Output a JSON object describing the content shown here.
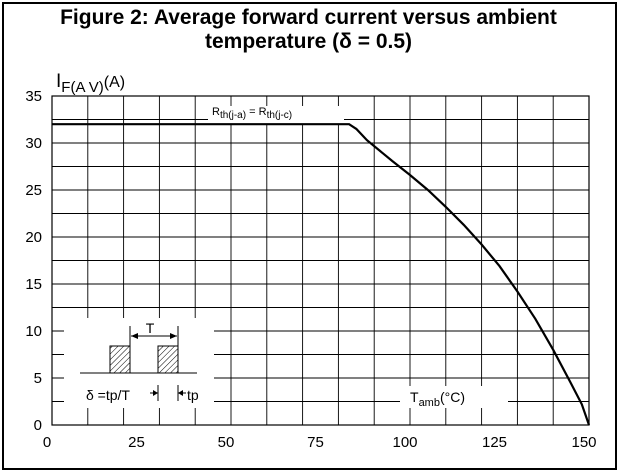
{
  "chart_data": {
    "type": "line",
    "title_line1": "Figure 2: Average forward current versus ambient",
    "title_line2": "temperature (δ = 0.5)",
    "ylabel": {
      "main": "I",
      "sub": "F(A V)",
      "unit": "(A)"
    },
    "xlabel": {
      "main": "T",
      "sub": "amb",
      "unit": "(°C)"
    },
    "xlim": [
      0,
      150
    ],
    "ylim": [
      0,
      35
    ],
    "x_ticks": [
      0,
      25,
      50,
      75,
      100,
      125,
      150
    ],
    "y_ticks": [
      0,
      5,
      10,
      15,
      20,
      25,
      30,
      35
    ],
    "grid": true,
    "series": [
      {
        "x": [
          0,
          83,
          85,
          88,
          95,
          100,
          105,
          110,
          115,
          120,
          125,
          130,
          135,
          140,
          145,
          148,
          150
        ],
        "y": [
          32,
          32,
          31.5,
          30.3,
          28.1,
          26.6,
          25.0,
          23.2,
          21.3,
          19.2,
          16.9,
          14.2,
          11.3,
          8.0,
          4.4,
          2.2,
          0
        ]
      }
    ],
    "annotations": {
      "rth_label": {
        "r1": "R",
        "s1": "th(j-a)",
        "eq": " = ",
        "r2": "R",
        "s2": "th(j-c)"
      },
      "pulse_period": "T",
      "duty_formula": "δ =tp/T",
      "pulse_width": "tp"
    }
  }
}
